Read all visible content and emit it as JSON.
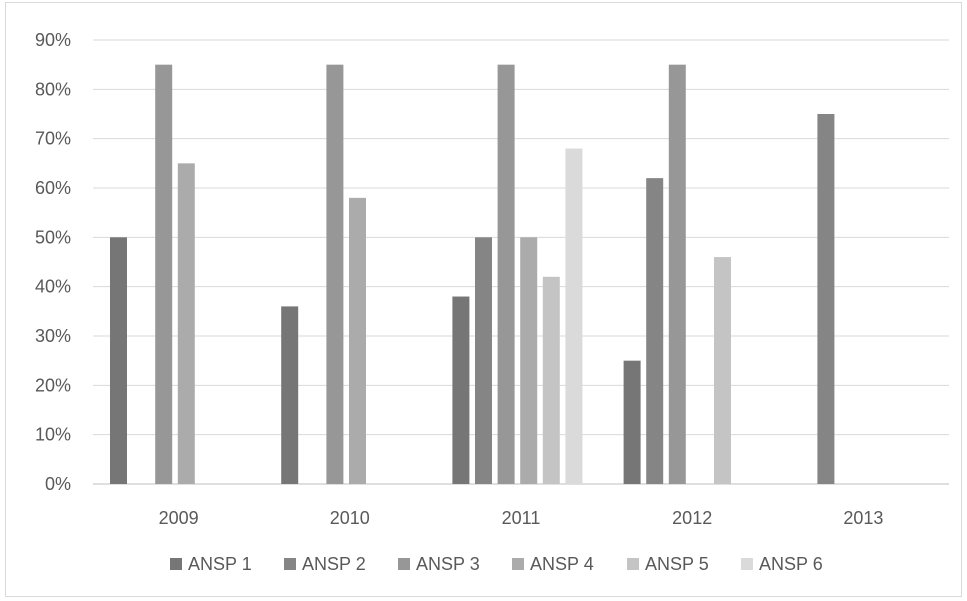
{
  "chart_data": {
    "type": "bar",
    "categories": [
      "2009",
      "2010",
      "2011",
      "2012",
      "2013"
    ],
    "series": [
      {
        "name": "ANSP 1",
        "color": "#767676",
        "values": [
          50,
          36,
          38,
          25,
          null
        ]
      },
      {
        "name": "ANSP 2",
        "color": "#858585",
        "values": [
          null,
          null,
          50,
          62,
          75
        ]
      },
      {
        "name": "ANSP 3",
        "color": "#979797",
        "values": [
          85,
          85,
          85,
          85,
          null
        ]
      },
      {
        "name": "ANSP 4",
        "color": "#ababab",
        "values": [
          65,
          58,
          50,
          null,
          null
        ]
      },
      {
        "name": "ANSP 5",
        "color": "#c4c4c4",
        "values": [
          null,
          null,
          42,
          46,
          null
        ]
      },
      {
        "name": "ANSP 6",
        "color": "#dadada",
        "values": [
          null,
          null,
          68,
          null,
          null
        ]
      }
    ],
    "y_ticks": [
      "0%",
      "10%",
      "20%",
      "30%",
      "40%",
      "50%",
      "60%",
      "70%",
      "80%",
      "90%"
    ],
    "ylim": [
      0,
      90
    ],
    "grid": true,
    "legend_position": "bottom"
  }
}
